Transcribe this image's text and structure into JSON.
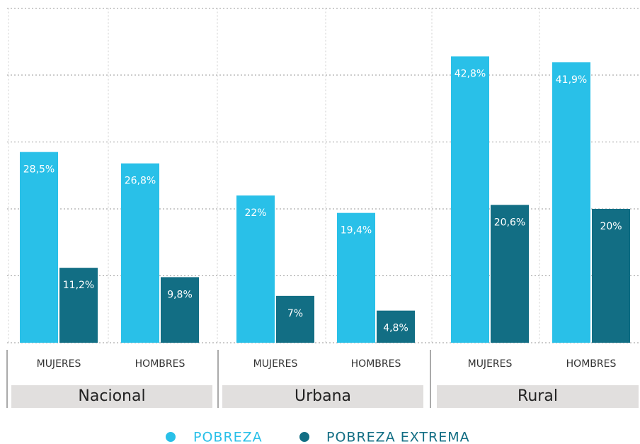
{
  "chart_data": {
    "type": "bar",
    "categories": [
      "MUJERES",
      "HOMBRES",
      "MUJERES",
      "HOMBRES",
      "MUJERES",
      "HOMBRES"
    ],
    "groups": [
      "Nacional",
      "Urbana",
      "Rural"
    ],
    "series": [
      {
        "name": "POBREZA",
        "color": "#29c0e8",
        "values": [
          28.5,
          26.8,
          22,
          19.4,
          42.8,
          41.9
        ],
        "value_labels": [
          "28,5%",
          "26,8%",
          "22%",
          "19,4%",
          "42,8%",
          "41,9%"
        ]
      },
      {
        "name": "POBREZA EXTREMA",
        "color": "#126e84",
        "values": [
          11.2,
          9.8,
          7,
          4.8,
          20.6,
          20
        ],
        "value_labels": [
          "11,2%",
          "9,8%",
          "7%",
          "4,8%",
          "20,6%",
          "20%"
        ]
      }
    ],
    "ylim": [
      0,
      50
    ],
    "yticks": [
      0,
      10,
      20,
      30,
      40,
      50
    ],
    "grid": true,
    "legend": "bottom"
  }
}
